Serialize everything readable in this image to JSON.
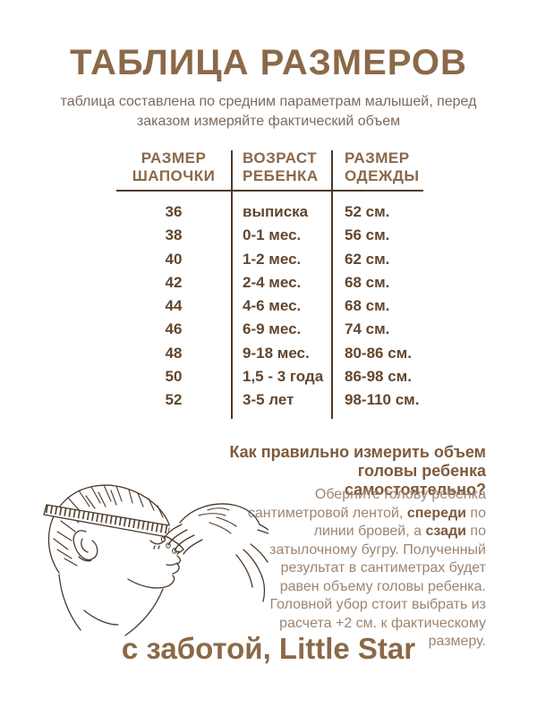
{
  "header": {
    "title": "ТАБЛИЦА РАЗМЕРОВ",
    "subtitle": "таблица составлена по средним параметрам малышей, перед\nзаказом измеряйте фактический объем"
  },
  "table": {
    "columns": [
      {
        "label": "РАЗМЕР\nШАПОЧКИ"
      },
      {
        "label": "ВОЗРАСТ\nРЕБЕНКА"
      },
      {
        "label": "РАЗМЕР\nОДЕЖДЫ"
      }
    ],
    "rows": [
      {
        "hat": "36",
        "age": "выписка",
        "clothes": "52 см."
      },
      {
        "hat": "38",
        "age": "0-1 мес.",
        "clothes": "56 см."
      },
      {
        "hat": "40",
        "age": "1-2 мес.",
        "clothes": "62 см."
      },
      {
        "hat": "42",
        "age": "2-4 мес.",
        "clothes": "68 см."
      },
      {
        "hat": "44",
        "age": "4-6 мес.",
        "clothes": "68 см."
      },
      {
        "hat": "46",
        "age": "6-9 мес.",
        "clothes": "74 см."
      },
      {
        "hat": "48",
        "age": "9-18 мес.",
        "clothes": "80-86 см."
      },
      {
        "hat": "50",
        "age": "1,5 - 3 года",
        "clothes": "86-98 см."
      },
      {
        "hat": "52",
        "age": "3-5 лет",
        "clothes": "98-110 см."
      }
    ]
  },
  "measure_guide": {
    "heading": "Как правильно измерить объем головы ребенка самостоятельно?",
    "paragraph_parts": [
      {
        "text": "Оберните голову ребенка сантиметровой лентой, ",
        "bold": false
      },
      {
        "text": "спереди",
        "bold": true
      },
      {
        "text": " по линии бровей, а ",
        "bold": false
      },
      {
        "text": "сзади",
        "bold": true
      },
      {
        "text": " по затылочному бугру. Полученный результат в сантиметрах будет равен объему головы ребенка. Головной убор стоит выбрать из расчета +2 см. к фактическому размеру.",
        "bold": false
      }
    ]
  },
  "footer": {
    "signature": "с заботой, Little Star"
  },
  "colors": {
    "title_brown": "#8b6948",
    "subtitle_brown": "#7c6a5c",
    "table_header_brown": "#8a684a",
    "table_text_brown": "#62462e",
    "table_line_brown": "#4c3829",
    "guide_heading_brown": "#7d5a3c",
    "guide_text_brown": "#9c8570",
    "sketch_brown": "#4a3826",
    "background": "#ffffff"
  }
}
